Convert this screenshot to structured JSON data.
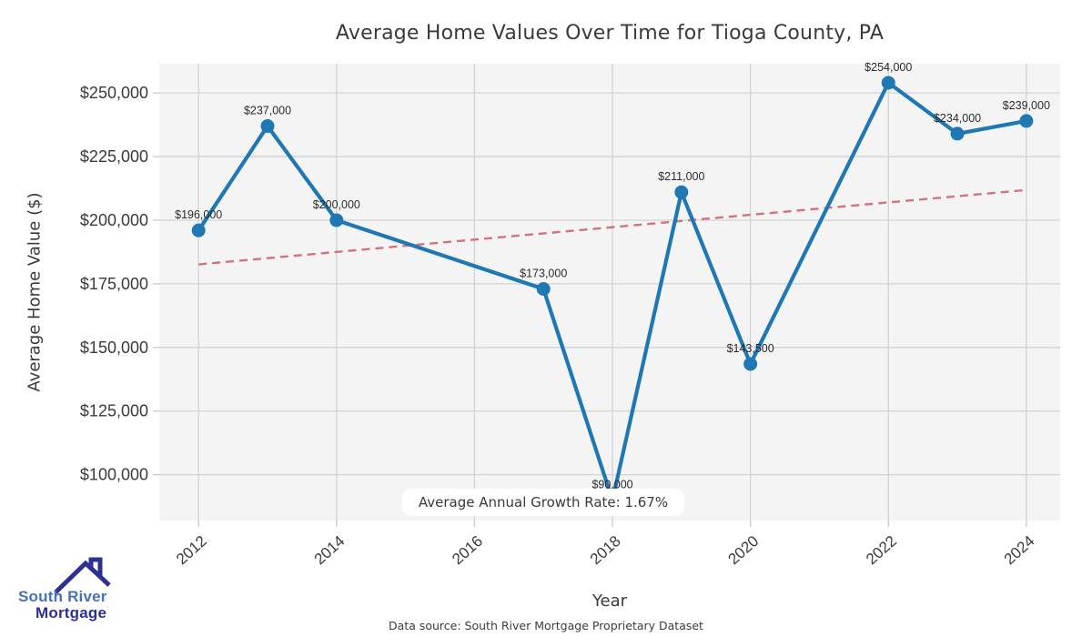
{
  "chart_data": {
    "type": "line",
    "title": "Average Home Values Over Time for Tioga County, PA",
    "xlabel": "Year",
    "ylabel": "Average Home Value ($)",
    "x": [
      2012,
      2013,
      2014,
      2017,
      2018,
      2019,
      2020,
      2022,
      2023,
      2024
    ],
    "values": [
      196000,
      237000,
      200000,
      173000,
      90000,
      211000,
      143500,
      254000,
      234000,
      239000
    ],
    "point_labels": [
      "$196,000",
      "$237,000",
      "$200,000",
      "$173,000",
      "$90,000",
      "$211,000",
      "$143,500",
      "$254,000",
      "$234,000",
      "$239,000"
    ],
    "x_ticks": [
      2012,
      2014,
      2016,
      2018,
      2020,
      2022,
      2024
    ],
    "x_tick_labels": [
      "2012",
      "2014",
      "2016",
      "2018",
      "2020",
      "2022",
      "2024"
    ],
    "y_ticks": [
      100000,
      125000,
      150000,
      175000,
      200000,
      225000,
      250000
    ],
    "y_tick_labels": [
      "$100,000",
      "$125,000",
      "$150,000",
      "$175,000",
      "$200,000",
      "$225,000",
      "$250,000"
    ],
    "xlim": [
      2011.43,
      2024.49
    ],
    "ylim": [
      82000,
      261500
    ],
    "grid": true,
    "legend": "none",
    "line_color": "#1f77b4",
    "marker_color": "#1f77b4",
    "plot_bg": "#f4f4f5",
    "grid_color": "#d2d2d6",
    "tick_color": "#c8c8cc",
    "label_color": "#2b2b2b",
    "tick_label_color": "#3a3a3a",
    "trend_line": {
      "start_x": 2012,
      "end_x": 2024,
      "start_value": 182650,
      "end_value": 211870,
      "color": "#d4727c",
      "style": "dashed"
    },
    "annotation": "Average Annual Growth Rate: 1.67%"
  },
  "branding": {
    "logo_line1": "South River",
    "logo_line2": "Mortgage",
    "logo_blue": "#4a6fbd",
    "logo_navy": "#2e3192"
  },
  "footer": {
    "source_text": "Data source: South River Mortgage Proprietary Dataset"
  }
}
